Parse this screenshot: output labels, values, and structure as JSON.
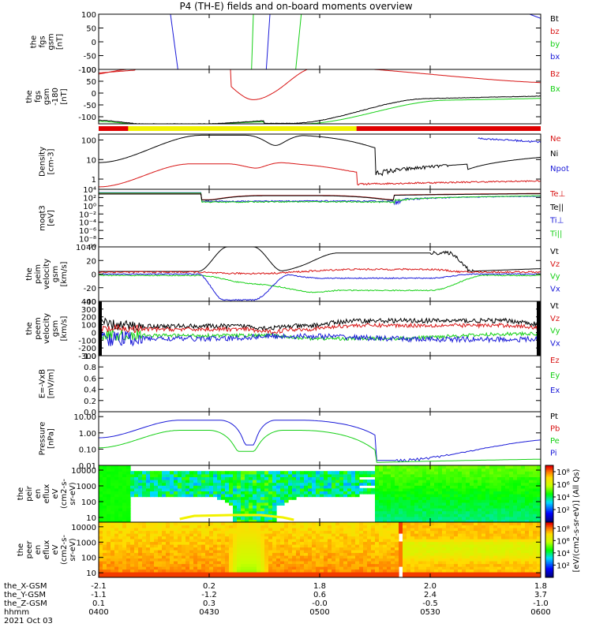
{
  "title": "P4 (TH-E) fields and on-board moments overview",
  "date": "2021 Oct 03",
  "colors": {
    "black": "#000000",
    "red": "#d81414",
    "green": "#16d016",
    "blue": "#1a1ad8",
    "yellow": "#f2f200",
    "red_bar": "#e00000"
  },
  "chart_data": [
    {
      "type": "line",
      "key": "fgs",
      "ylabel": [
        "the",
        "fgs",
        "gsm",
        "[nT]"
      ],
      "ylim": [
        -100,
        100
      ],
      "ytick_labels": [
        "100",
        "50",
        "0",
        "-50",
        "-100"
      ],
      "ytick_values": [
        100,
        50,
        0,
        -50,
        -100
      ],
      "legend": [
        {
          "label": "Bt",
          "color": "black"
        },
        {
          "label": "bz",
          "color": "red"
        },
        {
          "label": "by",
          "color": "green"
        },
        {
          "label": "bx",
          "color": "blue"
        }
      ]
    },
    {
      "type": "line",
      "key": "fgsfull",
      "ylabel": [
        "the",
        "fgs",
        "gsm",
        "-180",
        "[nT]"
      ],
      "ylim": [
        -130,
        100
      ],
      "ytick_labels": [
        "100",
        "50",
        "0",
        "-50",
        "-100"
      ],
      "ytick_values": [
        100,
        50,
        0,
        -50,
        -100
      ],
      "legend": [
        {
          "label": "Bz",
          "color": "red"
        },
        {
          "label": "Bx",
          "color": "green"
        }
      ]
    },
    {
      "type": "line",
      "key": "density",
      "ylabel": [
        "Density",
        "[cm-3]"
      ],
      "scale": "log",
      "ylim": [
        0.3,
        200
      ],
      "ytick_labels": [
        "100",
        "10",
        "1"
      ],
      "ytick_values": [
        100,
        10,
        1
      ],
      "legend": [
        {
          "label": "Ne",
          "color": "red"
        },
        {
          "label": "Ni",
          "color": "black"
        },
        {
          "label": "Npot",
          "color": "blue"
        }
      ]
    },
    {
      "type": "line",
      "key": "temp",
      "ylabel": [
        "moqt3",
        "[eV]"
      ],
      "scale": "log",
      "ylim": [
        1e-10,
        10000.0
      ],
      "ytick_labels": [
        "10⁴",
        "10²",
        "10⁰",
        "10⁻²",
        "10⁻⁴",
        "10⁻⁶",
        "10⁻⁸",
        "10⁻¹⁰"
      ],
      "ytick_values": [
        10000.0,
        100.0,
        1,
        0.01,
        0.0001,
        1e-06,
        1e-08,
        1e-10
      ],
      "legend": [
        {
          "label": "Te⊥",
          "color": "red"
        },
        {
          "label": "Te||",
          "color": "black"
        },
        {
          "label": "Ti⊥",
          "color": "blue"
        },
        {
          "label": "Ti||",
          "color": "green"
        }
      ]
    },
    {
      "type": "line",
      "key": "peim",
      "ylabel": [
        "the",
        "peim",
        "velocity",
        "gsm",
        "[km/s]"
      ],
      "ylim": [
        -40,
        40
      ],
      "ytick_labels": [
        "40",
        "20",
        "0",
        "-20",
        "-40"
      ],
      "ytick_values": [
        40,
        20,
        0,
        -20,
        -40
      ],
      "legend": [
        {
          "label": "Vt",
          "color": "black"
        },
        {
          "label": "Vz",
          "color": "red"
        },
        {
          "label": "Vy",
          "color": "green"
        },
        {
          "label": "Vx",
          "color": "blue"
        }
      ]
    },
    {
      "type": "line",
      "key": "peem",
      "ylabel": [
        "the",
        "peem",
        "velocity",
        "gsm",
        "[km/s]"
      ],
      "ylim": [
        -300,
        400
      ],
      "ytick_labels": [
        "400",
        "300",
        "200",
        "100",
        "0",
        "-100",
        "-200",
        "-300"
      ],
      "ytick_values": [
        400,
        300,
        200,
        100,
        0,
        -100,
        -200,
        -300
      ],
      "legend": [
        {
          "label": "Vt",
          "color": "black"
        },
        {
          "label": "Vz",
          "color": "red"
        },
        {
          "label": "Vy",
          "color": "green"
        },
        {
          "label": "Vx",
          "color": "blue"
        }
      ]
    },
    {
      "type": "line",
      "key": "efield",
      "ylabel": [
        "E=-VxB",
        "[mV/m]"
      ],
      "ylim": [
        0,
        1
      ],
      "ytick_labels": [
        "1.0",
        "0.8",
        "0.6",
        "0.4",
        "0.2",
        "0.0"
      ],
      "ytick_values": [
        1,
        0.8,
        0.6,
        0.4,
        0.2,
        0
      ],
      "legend": [
        {
          "label": "Ez",
          "color": "red"
        },
        {
          "label": "Ey",
          "color": "green"
        },
        {
          "label": "Ex",
          "color": "blue"
        }
      ]
    },
    {
      "type": "line",
      "key": "pressure",
      "ylabel": [
        "Pressure",
        "[nPa]"
      ],
      "scale": "log",
      "ylim": [
        0.01,
        20
      ],
      "ytick_labels": [
        "10.00",
        "1.00",
        "0.10",
        "0.01"
      ],
      "ytick_values": [
        10,
        1,
        0.1,
        0.01
      ],
      "legend": [
        {
          "label": "Pt",
          "color": "black"
        },
        {
          "label": "Pb",
          "color": "red"
        },
        {
          "label": "Pe",
          "color": "green"
        },
        {
          "label": "Pi",
          "color": "blue"
        }
      ]
    },
    {
      "type": "heatmap",
      "key": "peir",
      "ylabel": [
        "the",
        "peir",
        "en",
        "eflux",
        "eV",
        "(cm2-s-",
        "sr-eV)"
      ],
      "scale": "log",
      "ylim": [
        5,
        20000
      ],
      "ytick_labels": [
        "10000",
        "1000",
        "100",
        "10"
      ],
      "ytick_values": [
        10000,
        1000,
        100,
        10
      ],
      "colorbar": "peir"
    },
    {
      "type": "heatmap",
      "key": "peer",
      "ylabel": [
        "the",
        "peer",
        "en",
        "eflux",
        "eV",
        "(cm2-s-",
        "sr-eV)"
      ],
      "scale": "log",
      "ylim": [
        5,
        20000
      ],
      "ytick_labels": [
        "10000",
        "1000",
        "100",
        "10"
      ],
      "ytick_values": [
        10000,
        1000,
        100,
        10
      ],
      "colorbar": "peer"
    }
  ],
  "colorbars": {
    "label": "[eV/(cm2-s-sr-eV)] (All Qs)",
    "peir": {
      "range_exp": [
        0,
        9
      ],
      "tick_labels": [
        "10⁸",
        "10⁶",
        "10⁴",
        "10²"
      ],
      "tick_exps": [
        8,
        6,
        4,
        2
      ]
    },
    "peer": {
      "range_exp": [
        0,
        9
      ],
      "tick_labels": [
        "10⁸",
        "10⁶",
        "10⁴",
        "10²"
      ],
      "tick_exps": [
        8,
        6,
        4,
        2
      ]
    }
  },
  "xaxis": {
    "range_min": [
      400,
      600
    ],
    "rows": [
      {
        "label": "the_X-GSM",
        "values": [
          "-2.1",
          "0.2",
          "1.8",
          "2.0",
          "1.8"
        ]
      },
      {
        "label": "the_Y-GSM",
        "values": [
          "-1.1",
          "-1.2",
          "0.6",
          "2.4",
          "3.7"
        ]
      },
      {
        "label": "the_Z-GSM",
        "values": [
          "0.1",
          "0.3",
          "-0.0",
          "-0.5",
          "-1.0"
        ]
      },
      {
        "label": "hhmm",
        "values": [
          "0400",
          "0430",
          "0500",
          "0530",
          "0600"
        ]
      }
    ],
    "tick_times": [
      0,
      30,
      60,
      90,
      120
    ]
  }
}
